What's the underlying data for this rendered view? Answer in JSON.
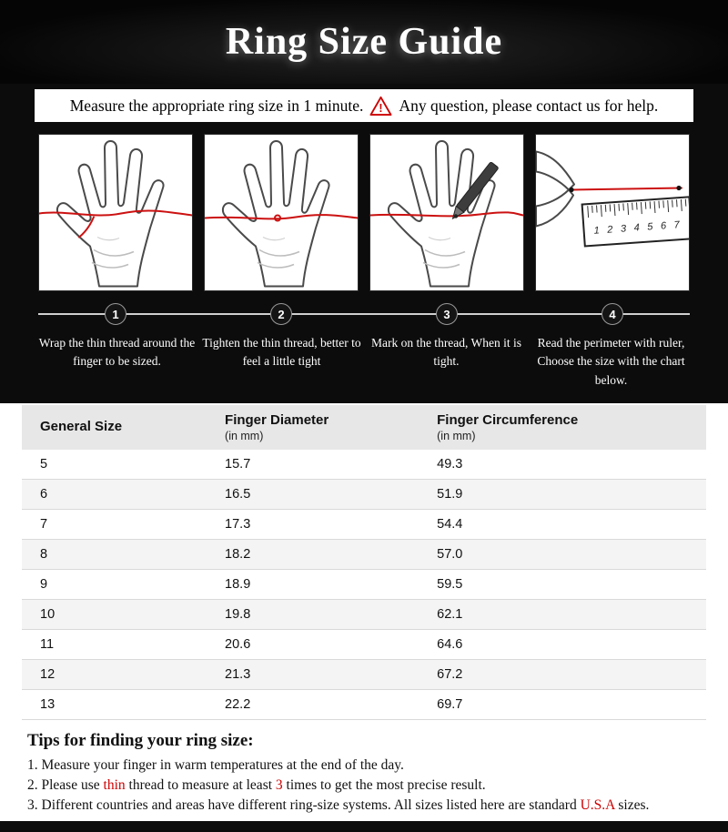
{
  "title": "Ring Size Guide",
  "notice": {
    "part1": "Measure the appropriate ring size in 1 minute.",
    "part2": "Any question, please contact us for help.",
    "icon": "warning-triangle-icon"
  },
  "steps": [
    {
      "number": "1",
      "text": "Wrap the thin thread around the finger to be sized."
    },
    {
      "number": "2",
      "text": "Tighten the thin thread, better to feel a little tight"
    },
    {
      "number": "3",
      "text": "Mark on the thread, When it is tight."
    },
    {
      "number": "4",
      "text": "Read the perimeter with ruler, Choose the size with the chart below."
    }
  ],
  "panel4": {
    "ruler_numbers": [
      "1",
      "2",
      "3",
      "4",
      "5",
      "6",
      "7"
    ]
  },
  "table": {
    "headers": [
      {
        "label": "General Size",
        "sub": ""
      },
      {
        "label": "Finger Diameter",
        "sub": "(in mm)"
      },
      {
        "label": "Finger Circumference",
        "sub": "(in mm)"
      }
    ],
    "rows": [
      [
        "5",
        "15.7",
        "49.3"
      ],
      [
        "6",
        "16.5",
        "51.9"
      ],
      [
        "7",
        "17.3",
        "54.4"
      ],
      [
        "8",
        "18.2",
        "57.0"
      ],
      [
        "9",
        "18.9",
        "59.5"
      ],
      [
        "10",
        "19.8",
        "62.1"
      ],
      [
        "11",
        "20.6",
        "64.6"
      ],
      [
        "12",
        "21.3",
        "67.2"
      ],
      [
        "13",
        "22.2",
        "69.7"
      ]
    ]
  },
  "tips": {
    "title": "Tips for finding your ring size:",
    "items": [
      {
        "segments": [
          {
            "text": "1. Measure your finger in warm temperatures at the end of the day.",
            "red": false
          }
        ]
      },
      {
        "segments": [
          {
            "text": "2. Please use ",
            "red": false
          },
          {
            "text": "thin",
            "red": true
          },
          {
            "text": " thread to measure at least ",
            "red": false
          },
          {
            "text": "3",
            "red": true
          },
          {
            "text": " times to get the most precise result.",
            "red": false
          }
        ]
      },
      {
        "segments": [
          {
            "text": "3. Different countries and areas have different ring-size systems. All sizes listed here are standard ",
            "red": false
          },
          {
            "text": "U.S.A",
            "red": true
          },
          {
            "text": " sizes.",
            "red": false
          }
        ]
      }
    ]
  },
  "colors": {
    "accent_red": "#cc0000",
    "thread_red": "#cc1111",
    "background_dark": "#0c0c0c",
    "table_header_bg": "#e7e7e7"
  }
}
